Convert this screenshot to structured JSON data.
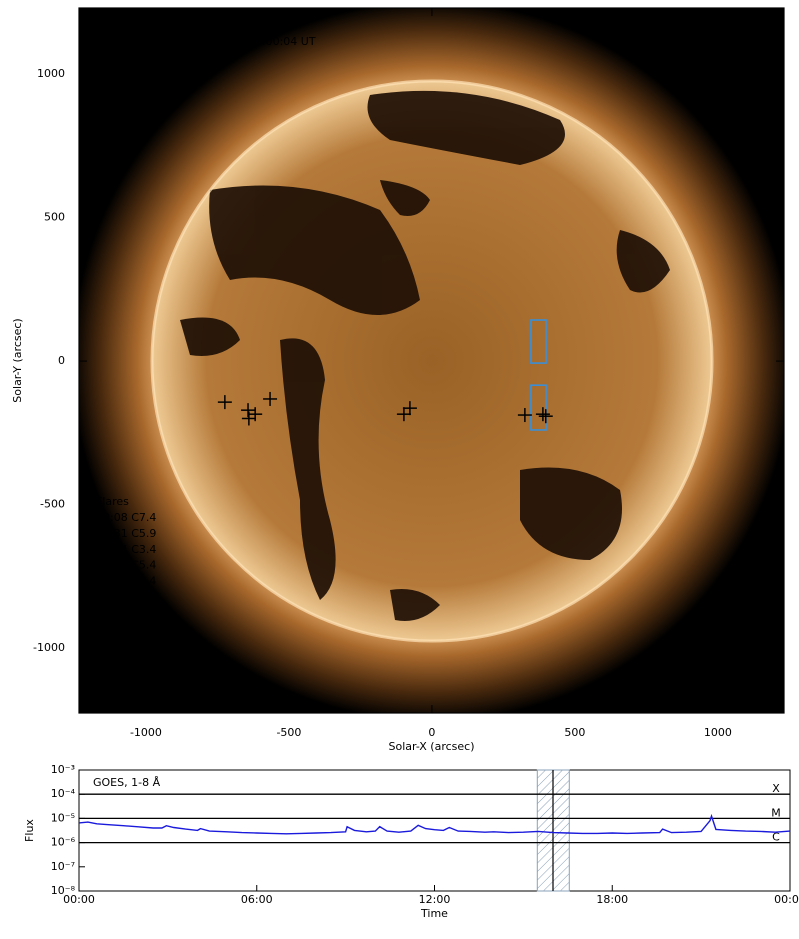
{
  "chart_data": [
    {
      "type": "image",
      "title": "AIA 0193, 9-Nov-2024, 12:00:04 UT",
      "x_label": "Solar-X (arcsec)",
      "y_label": "Solar-Y (arcsec)",
      "xlim": [
        -1234,
        1231
      ],
      "ylim": [
        -1226,
        1230
      ],
      "xticks": [
        -1000,
        -500,
        0,
        500,
        1000
      ],
      "yticks": [
        -1000,
        -500,
        0,
        500,
        1000
      ],
      "legend_title": "Flares",
      "flares": [
        "00:08 C7.4",
        "02:31 C5.9",
        "04:04 C3.4",
        "08:59 C5.4",
        "09:42 C5.4",
        "10:35 C6.7",
        "12:20 C7.3",
        "12:52 C4.2",
        "19:36 C5.4",
        "20:50 M1.2"
      ],
      "markers": [
        {
          "x": -724,
          "y": -143
        },
        {
          "x": -643,
          "y": -171
        },
        {
          "x": -640,
          "y": -200
        },
        {
          "x": -618,
          "y": -185
        },
        {
          "x": -566,
          "y": -132
        },
        {
          "x": -98,
          "y": -185
        },
        {
          "x": -77,
          "y": -164
        },
        {
          "x": 325,
          "y": -188
        },
        {
          "x": 388,
          "y": -185
        },
        {
          "x": 398,
          "y": -192
        }
      ],
      "marker_color": "#000000",
      "boxes": [
        {
          "x0": 346,
          "x1": 399,
          "y0": -7,
          "y1": 143
        },
        {
          "x0": 346,
          "x1": 399,
          "y0": -240,
          "y1": -84
        }
      ],
      "box_color": "#3a8fd8"
    },
    {
      "type": "line",
      "title": "GOES, 1-8 Å",
      "x_label": "Time",
      "y_label": "Flux",
      "log_y": true,
      "xlim": [
        0,
        24
      ],
      "ylim": [
        1e-08,
        0.001
      ],
      "xticks": [
        {
          "value": 0,
          "label": "00:00"
        },
        {
          "value": 6,
          "label": "06:00"
        },
        {
          "value": 12,
          "label": "12:00"
        },
        {
          "value": 18,
          "label": "18:00"
        },
        {
          "value": 24,
          "label": "00:00"
        }
      ],
      "yticks": [
        {
          "value": 1e-08,
          "label": "10⁻⁸"
        },
        {
          "value": 1e-07,
          "label": "10⁻⁷"
        },
        {
          "value": 1e-06,
          "label": "10⁻⁶"
        },
        {
          "value": 1e-05,
          "label": "10⁻⁵"
        },
        {
          "value": 0.0001,
          "label": "10⁻⁴"
        },
        {
          "value": 0.001,
          "label": "10⁻³"
        }
      ],
      "class_levels": [
        {
          "value": 0.0001,
          "label": "X"
        },
        {
          "value": 1e-05,
          "label": "M"
        },
        {
          "value": 1e-06,
          "label": "C"
        }
      ],
      "shaded_span": [
        15.47,
        16.55
      ],
      "vline": 16.0,
      "color": "#1a1adc",
      "x": [
        0,
        0.3,
        0.6,
        1,
        1.5,
        2,
        2.5,
        2.8,
        2.95,
        3.2,
        3.6,
        4,
        4.1,
        4.4,
        5,
        5.5,
        6,
        6.5,
        7,
        7.5,
        8,
        8.5,
        9,
        9.05,
        9.3,
        9.7,
        10,
        10.15,
        10.4,
        10.8,
        11.2,
        11.45,
        11.7,
        12,
        12.3,
        12.5,
        12.8,
        13.2,
        13.7,
        14,
        14.5,
        15,
        15.5,
        16,
        16.5,
        17,
        17.5,
        18,
        18.5,
        19,
        19.6,
        19.7,
        20,
        20.5,
        21,
        21.3,
        21.35,
        21.5,
        22,
        22.5,
        23,
        23.5,
        24
      ],
      "values": [
        6.5e-06,
        7e-06,
        6e-06,
        5.5e-06,
        5e-06,
        4.5e-06,
        4e-06,
        4e-06,
        5e-06,
        4.2e-06,
        3.6e-06,
        3.2e-06,
        3.8e-06,
        3e-06,
        2.8e-06,
        2.6e-06,
        2.5e-06,
        2.4e-06,
        2.3e-06,
        2.4e-06,
        2.5e-06,
        2.6e-06,
        2.8e-06,
        4.5e-06,
        3.2e-06,
        2.8e-06,
        3e-06,
        4.6e-06,
        3e-06,
        2.7e-06,
        3e-06,
        5.2e-06,
        3.8e-06,
        3.4e-06,
        3.2e-06,
        4.2e-06,
        3e-06,
        2.9e-06,
        2.7e-06,
        2.8e-06,
        2.6e-06,
        2.7e-06,
        2.9e-06,
        2.6e-06,
        2.5e-06,
        2.4e-06,
        2.4e-06,
        2.5e-06,
        2.4e-06,
        2.5e-06,
        2.6e-06,
        3.6e-06,
        2.6e-06,
        2.7e-06,
        2.9e-06,
        8e-06,
        1.25e-05,
        3.5e-06,
        3.2e-06,
        3e-06,
        2.9e-06,
        2.7e-06,
        3e-06
      ]
    }
  ]
}
